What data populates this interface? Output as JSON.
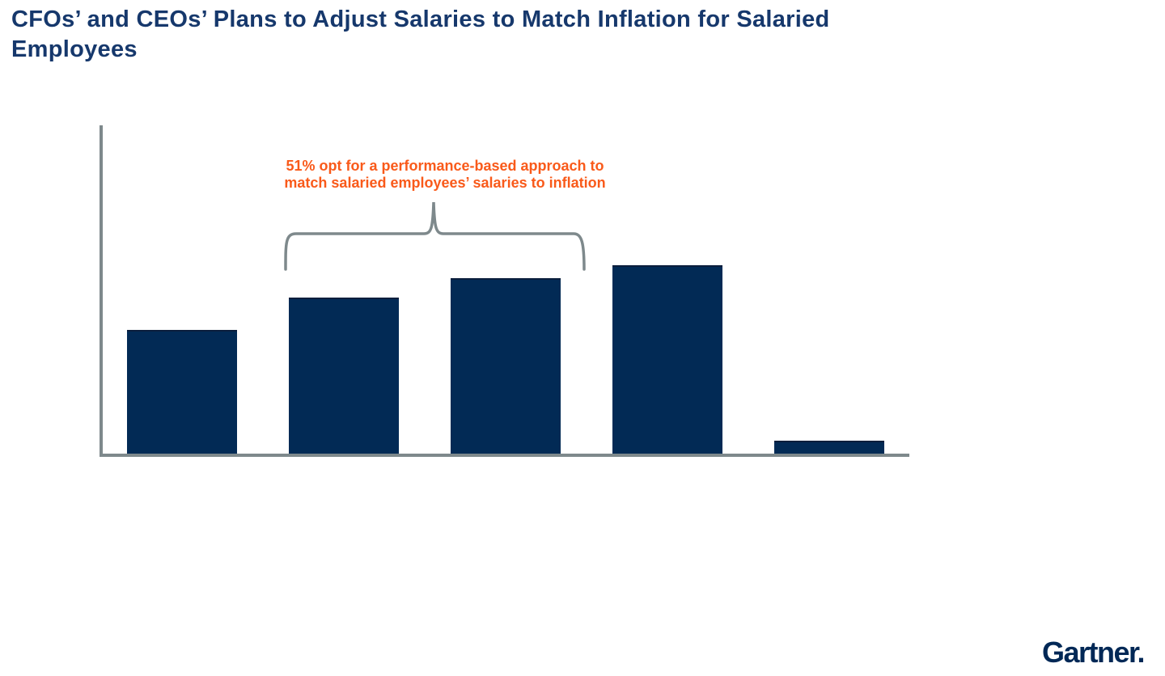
{
  "page": {
    "background": "#FFFFFF"
  },
  "header": {
    "title_lines": [
      "CFOs’ and CEOs’ Plans to Adjust Salaries to Match Inflation for Salaried",
      "Employees"
    ],
    "title_color": "#16386C"
  },
  "annotation": {
    "lines": [
      "51% opt for a performance-based approach to",
      "match salaried employees’ salaries to inflation"
    ],
    "color": "#F95A1A"
  },
  "branding": {
    "logo_text": "Gartner.",
    "logo_color": "#002856"
  },
  "chart_data": {
    "type": "bar",
    "title": "CFOs’ and CEOs’ Plans to Adjust Salaries to Match Inflation for Salaried Employees",
    "values_pct_estimated": [
      19,
      24,
      27,
      29,
      2
    ],
    "unit": "%",
    "ylim": [
      0,
      30
    ],
    "grid": false,
    "legend": false,
    "categories_visible": false,
    "value_labels_visible": false,
    "bar_color": "#022A55",
    "bar_top_edge_color": "#0B1E3C",
    "axis_color": "#7E898C",
    "annotation": {
      "text": "51% opt for a performance-based approach to match salaried employees’ salaries to inflation",
      "color": "#F95A1A",
      "brace_color": "#7E898C",
      "brace_spans_bars": [
        2,
        3
      ]
    }
  }
}
